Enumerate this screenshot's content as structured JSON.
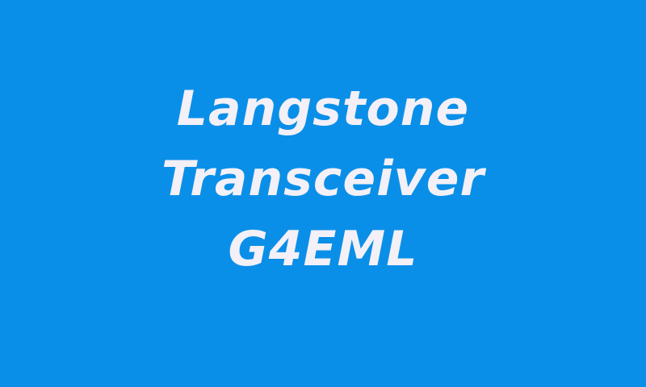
{
  "splash": {
    "background_color": "#0a8fe8",
    "text_color": "#f3f0f7",
    "lines": [
      "Langstone",
      "Transceiver",
      "G4EML"
    ]
  }
}
